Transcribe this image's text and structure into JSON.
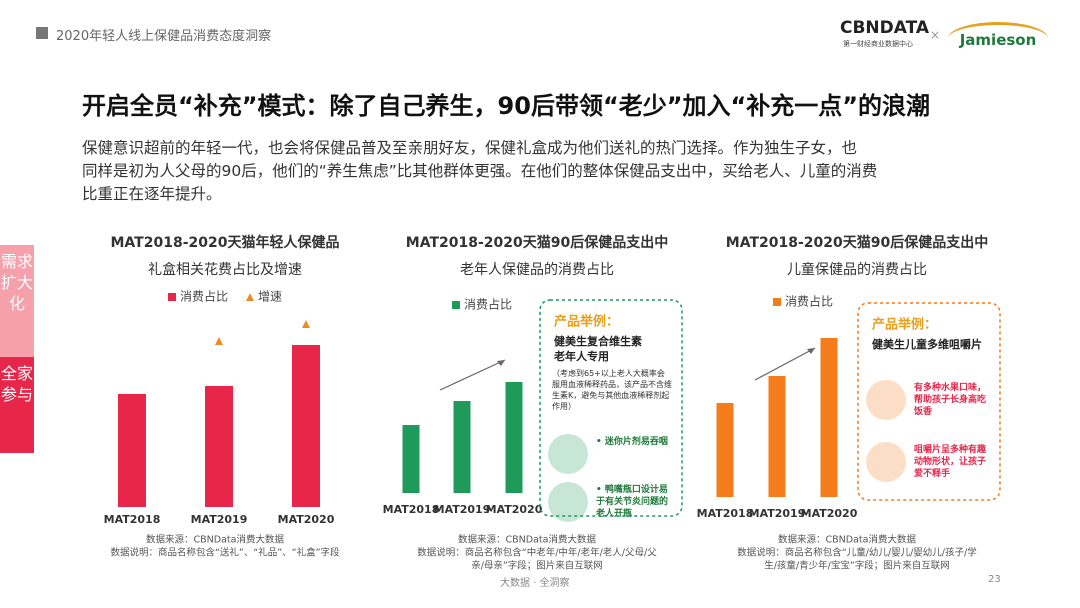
{
  "header": {
    "report": "2020年轻人线上保健品消费态度洞察",
    "logo": "CBNDATA",
    "logo_sub": "第一财经商业数据中心",
    "partner": "Jamieson"
  },
  "title": "开启全员“补充”模式：除了自己养生，90后带领“老少”加入“补充一点”的浪潮",
  "body": [
    "保健意识超前的年轻一代，也会将保健品普及至亲朋好友，保健礼盒成为他们送礼的热门选择。作为独生子女，也",
    "同样是初为人父母的90后，他们的“养生焦虑”比其他群体更强。在他们的整体保健品支出中，买给老人、儿童的消费",
    "比重正在逐年提升。"
  ],
  "side_tabs": [
    "需求扩大化",
    "全家参与"
  ],
  "chart_data": [
    {
      "type": "bar",
      "title": [
        "MAT2018-2020天猫年轻人保健品",
        "礼盒相关花费占比及增速"
      ],
      "categories": [
        "MAT2018",
        "MAT2019",
        "MAT2020"
      ],
      "series": [
        {
          "name": "消费占比",
          "color": "#e8264a",
          "values": [
            113,
            121,
            162
          ]
        },
        {
          "name": "增速",
          "type": "marker",
          "color": "#f08a24",
          "values": [
            null,
            162,
            179
          ]
        }
      ],
      "notes": [
        "数据来源：CBNData消费大数据",
        "数据说明：商品名称包含“送礼”、“礼品”、“礼盒”字段"
      ]
    },
    {
      "type": "bar",
      "title": [
        "MAT2018-2020天猫90后保健品支出中",
        "老年人保健品的消费占比"
      ],
      "categories": [
        "MAT2018",
        "MAT2019",
        "MAT2020"
      ],
      "series": [
        {
          "name": "消费占比",
          "color": "#1f9a5b",
          "values": [
            68,
            92,
            111
          ]
        }
      ],
      "notes": [
        "数据来源：CBNData消费大数据",
        "数据说明：商品名称包含“中老年/中年/老年/老人/父母/父",
        "亲/母亲”字段；图片来自互联网"
      ],
      "callout": {
        "heading": "产品举例：",
        "product": [
          "健美生复合维生素",
          "老年人专用"
        ],
        "detail": "（考虑到65+以上老人大概率会服用血液稀释药品，该产品不含维生素K，避免与其他血液稀释剂起作用）",
        "points": [
          "• 迷你片剂易吞咽",
          "• 鸭嘴瓶口设计易于有关节炎问题的老人开瓶"
        ]
      }
    },
    {
      "type": "bar",
      "title": [
        "MAT2018-2020天猫90后保健品支出中",
        "儿童保健品的消费占比"
      ],
      "categories": [
        "MAT2018",
        "MAT2019",
        "MAT2020"
      ],
      "series": [
        {
          "name": "消费占比",
          "color": "#f57c1a",
          "values": [
            94,
            121,
            159
          ]
        }
      ],
      "notes": [
        "数据来源：CBNData消费大数据",
        "数据说明：商品名称包含“儿童/幼儿/婴儿/婴幼儿/孩子/学",
        "生/孩童/青少年/宝宝”字段；图片来自互联网"
      ],
      "callout": {
        "heading": "产品举例：",
        "product": [
          "健美生儿童多维咀嚼片"
        ],
        "points": [
          "有多种水果口味，帮助孩子长身高吃饭香",
          "咀嚼片呈多种有趣动物形状，让孩子爱不释手"
        ]
      }
    }
  ],
  "footer": {
    "center": "大数据 · 全洞察",
    "page": "23"
  }
}
